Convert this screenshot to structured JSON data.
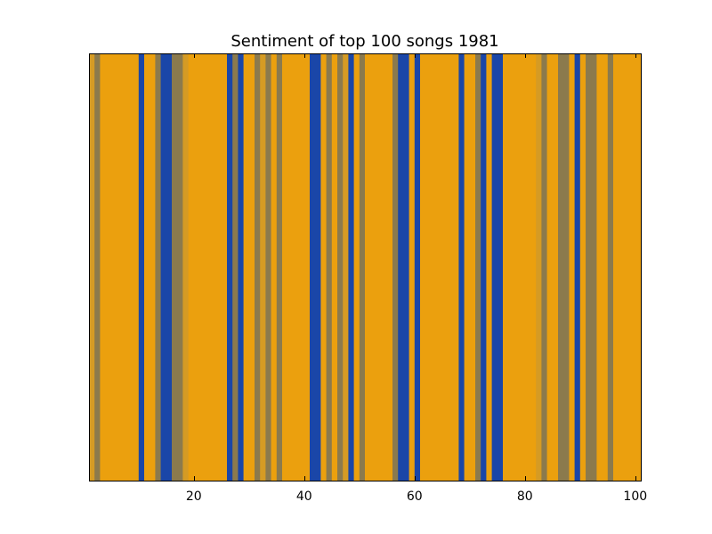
{
  "chart_data": {
    "type": "bar",
    "title": "Sentiment of top 100 songs 1981",
    "xlabel": "",
    "ylabel": "",
    "xlim": [
      1,
      101
    ],
    "x_ticks": [
      20,
      40,
      60,
      80,
      100
    ],
    "y_axis_visible": false,
    "grid": false,
    "colors": {
      "positive": "#eba00e",
      "slightly_positive": "#d59b24",
      "neutral": "#8b7a4d",
      "negative": "#1a46a8"
    },
    "songs": [
      1,
      2,
      3,
      4,
      5,
      6,
      7,
      8,
      9,
      10,
      11,
      12,
      13,
      14,
      15,
      16,
      17,
      18,
      19,
      20,
      21,
      22,
      23,
      24,
      25,
      26,
      27,
      28,
      29,
      30,
      31,
      32,
      33,
      34,
      35,
      36,
      37,
      38,
      39,
      40,
      41,
      42,
      43,
      44,
      45,
      46,
      47,
      48,
      49,
      50,
      51,
      52,
      53,
      54,
      55,
      56,
      57,
      58,
      59,
      60,
      61,
      62,
      63,
      64,
      65,
      66,
      67,
      68,
      69,
      70,
      71,
      72,
      73,
      74,
      75,
      76,
      77,
      78,
      79,
      80,
      81,
      82,
      83,
      84,
      85,
      86,
      87,
      88,
      89,
      90,
      91,
      92,
      93,
      94,
      95,
      96,
      97,
      98,
      99,
      100
    ],
    "sentiment": [
      "slightly_positive",
      "neutral",
      "positive",
      "positive",
      "positive",
      "positive",
      "positive",
      "positive",
      "positive",
      "negative",
      "positive",
      "positive",
      "neutral",
      "negative",
      "negative",
      "neutral",
      "neutral",
      "slightly_positive",
      "positive",
      "positive",
      "positive",
      "positive",
      "positive",
      "positive",
      "positive",
      "negative",
      "neutral",
      "negative",
      "positive",
      "positive",
      "neutral",
      "slightly_positive",
      "neutral",
      "positive",
      "neutral",
      "positive",
      "positive",
      "positive",
      "positive",
      "positive",
      "negative",
      "negative",
      "positive",
      "neutral",
      "positive",
      "neutral",
      "slightly_positive",
      "negative",
      "positive",
      "neutral",
      "positive",
      "positive",
      "positive",
      "positive",
      "positive",
      "neutral",
      "negative",
      "negative",
      "positive",
      "negative",
      "positive",
      "positive",
      "positive",
      "positive",
      "positive",
      "positive",
      "positive",
      "negative",
      "positive",
      "positive",
      "neutral",
      "negative",
      "positive",
      "negative",
      "negative",
      "positive",
      "positive",
      "positive",
      "positive",
      "positive",
      "positive",
      "slightly_positive",
      "neutral",
      "positive",
      "positive",
      "neutral",
      "neutral",
      "positive",
      "negative",
      "positive",
      "neutral",
      "neutral",
      "positive",
      "positive",
      "neutral",
      "positive",
      "positive",
      "positive",
      "positive",
      "positive"
    ]
  }
}
